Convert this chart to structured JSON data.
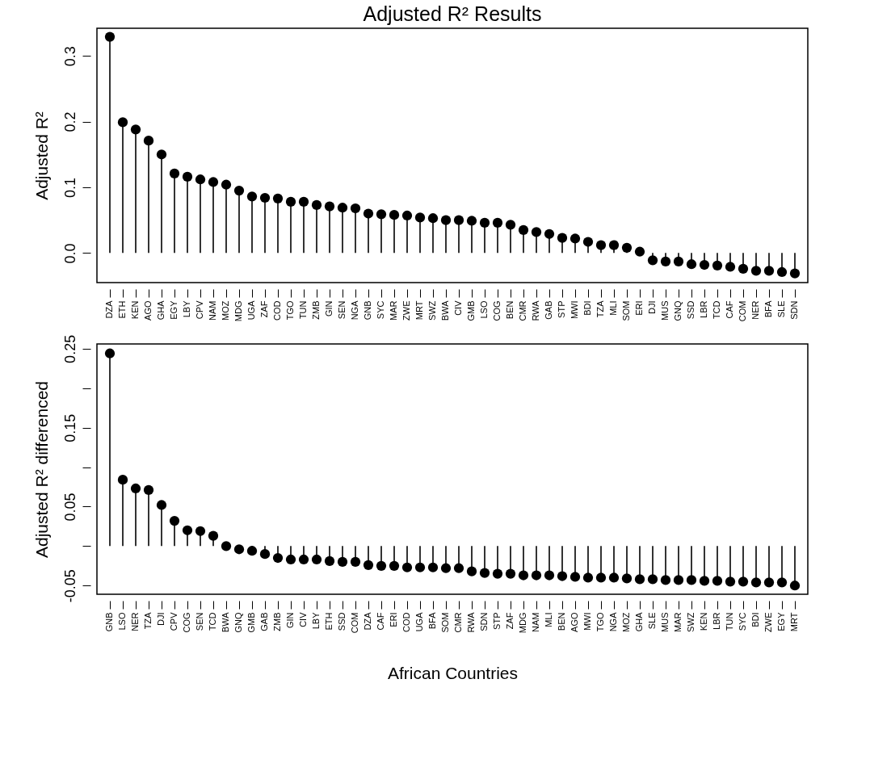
{
  "chart_data": [
    {
      "type": "lollipop",
      "title": "Adjusted R² Results",
      "ylabel": "Adjusted R²",
      "color": "#000000",
      "marker": "circle",
      "categories": [
        "DZA",
        "ETH",
        "KEN",
        "AGO",
        "GHA",
        "EGY",
        "LBY",
        "CPV",
        "NAM",
        "MOZ",
        "MDG",
        "UGA",
        "ZAF",
        "COD",
        "TGO",
        "TUN",
        "ZMB",
        "GIN",
        "SEN",
        "NGA",
        "GNB",
        "SYC",
        "MAR",
        "ZWE",
        "MRT",
        "SWZ",
        "BWA",
        "CIV",
        "GMB",
        "LSO",
        "COG",
        "BEN",
        "CMR",
        "RWA",
        "GAB",
        "STP",
        "MWI",
        "BDI",
        "TZA",
        "MLI",
        "SOM",
        "ERI",
        "DJI",
        "MUS",
        "GNQ",
        "SSD",
        "LBR",
        "TCD",
        "CAF",
        "COM",
        "NER",
        "BFA",
        "SLE",
        "SDN"
      ],
      "values": [
        0.329,
        0.199,
        0.188,
        0.171,
        0.15,
        0.121,
        0.116,
        0.112,
        0.108,
        0.104,
        0.095,
        0.086,
        0.084,
        0.083,
        0.078,
        0.078,
        0.073,
        0.071,
        0.069,
        0.068,
        0.06,
        0.059,
        0.058,
        0.057,
        0.054,
        0.053,
        0.05,
        0.05,
        0.049,
        0.046,
        0.046,
        0.043,
        0.035,
        0.032,
        0.029,
        0.023,
        0.022,
        0.017,
        0.012,
        0.012,
        0.008,
        0.002,
        -0.011,
        -0.013,
        -0.013,
        -0.017,
        -0.018,
        -0.019,
        -0.021,
        -0.024,
        -0.027,
        -0.027,
        -0.029,
        -0.031
      ],
      "ylim": [
        -0.045,
        0.342
      ],
      "yticks": [
        {
          "value": 0,
          "label": "0.0"
        },
        0.1,
        0.2,
        0.3
      ]
    },
    {
      "type": "lollipop",
      "ylabel": "Adjusted R² differenced",
      "xlabel": "African Countries",
      "color": "#000000",
      "marker": "circle",
      "categories": [
        "GNB",
        "LSO",
        "NER",
        "TZA",
        "DJI",
        "CPV",
        "COG",
        "SEN",
        "TCD",
        "BWA",
        "GNQ",
        "GMB",
        "GAB",
        "ZMB",
        "GIN",
        "CIV",
        "LBY",
        "ETH",
        "SSD",
        "COM",
        "DZA",
        "CAF",
        "ERI",
        "COD",
        "UGA",
        "BFA",
        "SOM",
        "CMR",
        "RWA",
        "SDN",
        "STP",
        "ZAF",
        "MDG",
        "NAM",
        "MLI",
        "BEN",
        "AGO",
        "MWI",
        "TGO",
        "NGA",
        "MOZ",
        "GHA",
        "SLE",
        "MUS",
        "MAR",
        "SWZ",
        "KEN",
        "LBR",
        "TUN",
        "SYC",
        "BDI",
        "ZWE",
        "EGY",
        "MRT"
      ],
      "values": [
        0.244,
        0.084,
        0.073,
        0.071,
        0.052,
        0.032,
        0.02,
        0.019,
        0.013,
        0.0,
        -0.004,
        -0.006,
        -0.01,
        -0.015,
        -0.017,
        -0.017,
        -0.017,
        -0.019,
        -0.02,
        -0.02,
        -0.024,
        -0.025,
        -0.025,
        -0.027,
        -0.027,
        -0.027,
        -0.028,
        -0.028,
        -0.032,
        -0.034,
        -0.035,
        -0.035,
        -0.037,
        -0.037,
        -0.037,
        -0.038,
        -0.039,
        -0.04,
        -0.04,
        -0.04,
        -0.041,
        -0.042,
        -0.042,
        -0.043,
        -0.043,
        -0.043,
        -0.044,
        -0.044,
        -0.045,
        -0.045,
        -0.046,
        -0.046,
        -0.046,
        -0.05
      ],
      "ylim": [
        -0.061,
        0.256
      ],
      "yticks": [
        -0.05,
        {
          "value": 0,
          "label": null
        },
        0.05,
        {
          "value": 0.1,
          "label": null
        },
        0.15,
        {
          "value": 0.2,
          "label": null
        },
        0.25
      ]
    }
  ]
}
